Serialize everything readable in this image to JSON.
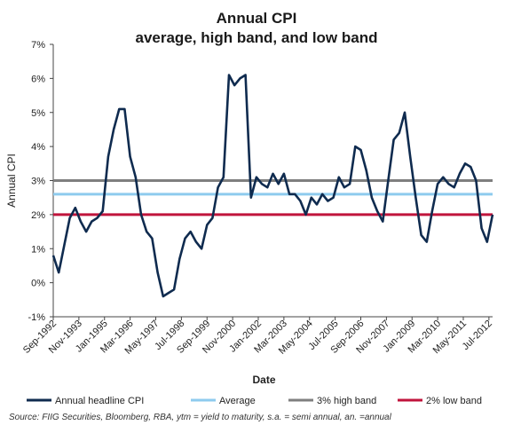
{
  "chart_data": {
    "type": "line",
    "title": "Annual CPI",
    "subtitle": "average, high band, and low band",
    "xlabel": "Date",
    "ylabel": "Annual CPI",
    "ylim": [
      -1,
      7
    ],
    "yticks": [
      "-1%",
      "0%",
      "1%",
      "2%",
      "3%",
      "4%",
      "5%",
      "6%",
      "7%"
    ],
    "xticks": [
      "Sep-1992",
      "Nov-1993",
      "Jan-1995",
      "Mar-1996",
      "May-1997",
      "Jul-1998",
      "Sep-1999",
      "Nov-2000",
      "Jan-2002",
      "Mar-2003",
      "May-2004",
      "Jul-2005",
      "Sep-2006",
      "Nov-2007",
      "Jan-2009",
      "Mar-2010",
      "May-2011",
      "Jul-2012"
    ],
    "grid": false,
    "legend_position": "bottom",
    "series": [
      {
        "name": "Annual headline CPI",
        "color": "#0f2b4f",
        "x": [
          "1992-09",
          "1992-12",
          "1993-03",
          "1993-06",
          "1993-09",
          "1993-12",
          "1994-03",
          "1994-06",
          "1994-09",
          "1994-12",
          "1995-03",
          "1995-06",
          "1995-09",
          "1995-12",
          "1996-03",
          "1996-06",
          "1996-09",
          "1996-12",
          "1997-03",
          "1997-06",
          "1997-09",
          "1997-12",
          "1998-03",
          "1998-06",
          "1998-09",
          "1998-12",
          "1999-03",
          "1999-06",
          "1999-09",
          "1999-12",
          "2000-03",
          "2000-06",
          "2000-09",
          "2000-12",
          "2001-03",
          "2001-06",
          "2001-09",
          "2001-12",
          "2002-03",
          "2002-06",
          "2002-09",
          "2002-12",
          "2003-03",
          "2003-06",
          "2003-09",
          "2003-12",
          "2004-03",
          "2004-06",
          "2004-09",
          "2004-12",
          "2005-03",
          "2005-06",
          "2005-09",
          "2005-12",
          "2006-03",
          "2006-06",
          "2006-09",
          "2006-12",
          "2007-03",
          "2007-06",
          "2007-09",
          "2007-12",
          "2008-03",
          "2008-06",
          "2008-09",
          "2008-12",
          "2009-03",
          "2009-06",
          "2009-09",
          "2009-12",
          "2010-03",
          "2010-06",
          "2010-09",
          "2010-12",
          "2011-03",
          "2011-06",
          "2011-09",
          "2011-12",
          "2012-03",
          "2012-06",
          "2012-09"
        ],
        "values": [
          0.8,
          0.3,
          1.1,
          1.9,
          2.2,
          1.8,
          1.5,
          1.8,
          1.9,
          2.1,
          3.7,
          4.5,
          5.1,
          5.1,
          3.7,
          3.1,
          2.0,
          1.5,
          1.3,
          0.3,
          -0.4,
          -0.3,
          -0.2,
          0.7,
          1.3,
          1.5,
          1.2,
          1.0,
          1.7,
          1.9,
          2.8,
          3.1,
          6.1,
          5.8,
          6.0,
          6.1,
          2.5,
          3.1,
          2.9,
          2.8,
          3.2,
          2.9,
          3.2,
          2.6,
          2.6,
          2.4,
          2.0,
          2.5,
          2.3,
          2.6,
          2.4,
          2.5,
          3.1,
          2.8,
          2.9,
          4.0,
          3.9,
          3.3,
          2.5,
          2.1,
          1.8,
          3.0,
          4.2,
          4.4,
          5.0,
          3.7,
          2.5,
          1.4,
          1.2,
          2.1,
          2.9,
          3.1,
          2.9,
          2.8,
          3.2,
          3.5,
          3.4,
          3.0,
          1.6,
          1.2,
          2.0
        ]
      },
      {
        "name": "Average",
        "color": "#8ecbee",
        "constant": 2.6
      },
      {
        "name": "3% high band",
        "color": "#7f7f7f",
        "constant": 3.0
      },
      {
        "name": "2% low band",
        "color": "#c0143c",
        "constant": 2.0
      }
    ]
  },
  "source_note": "Source: FIIG Securities, Bloomberg, RBA, ytm = yield to maturity, s.a. = semi annual, an. =annual"
}
